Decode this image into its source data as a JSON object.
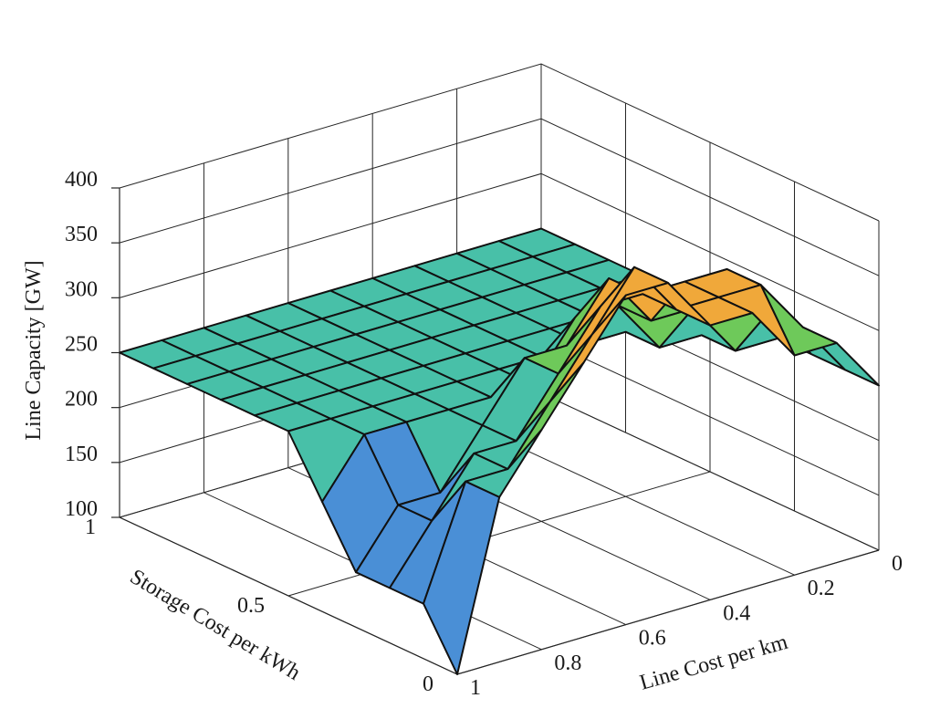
{
  "chart_data": {
    "type": "surface",
    "xlabel": "Line Cost per km",
    "ylabel": "Storage Cost per kWh",
    "zlabel": "Line Capacity [GW]",
    "xlim": [
      0,
      1
    ],
    "ylim": [
      0,
      1
    ],
    "zlim": [
      100,
      400
    ],
    "x_ticks": [
      "0",
      "0.2",
      "0.4",
      "0.6",
      "0.8",
      "1"
    ],
    "y_ticks": [
      "0",
      "0.5",
      "1"
    ],
    "z_ticks": [
      "100",
      "150",
      "200",
      "250",
      "300",
      "350",
      "400"
    ],
    "grid": true,
    "colormap": "parula",
    "x": [
      0,
      0.1,
      0.2,
      0.3,
      0.4,
      0.5,
      0.6,
      0.7,
      0.8,
      0.9,
      1
    ],
    "y": [
      0,
      0.1,
      0.2,
      0.3,
      0.4,
      0.5,
      0.6,
      0.7,
      0.8,
      0.9,
      1
    ],
    "z_rows_note": "rows indexed by y (0..1), columns by x (0..1)",
    "z": [
      [
        250,
        300,
        300,
        350,
        350,
        400,
        400,
        350,
        300,
        250,
        100
      ],
      [
        250,
        300,
        350,
        350,
        350,
        400,
        350,
        300,
        250,
        250,
        150
      ],
      [
        250,
        300,
        350,
        350,
        350,
        350,
        300,
        250,
        250,
        200,
        150
      ],
      [
        250,
        250,
        300,
        300,
        350,
        300,
        300,
        250,
        200,
        200,
        150
      ],
      [
        250,
        250,
        250,
        300,
        300,
        250,
        250,
        250,
        250,
        250,
        200
      ],
      [
        250,
        250,
        250,
        250,
        250,
        250,
        250,
        250,
        250,
        250,
        250
      ],
      [
        250,
        250,
        250,
        250,
        250,
        250,
        250,
        250,
        250,
        250,
        250
      ],
      [
        250,
        250,
        250,
        250,
        250,
        250,
        250,
        250,
        250,
        250,
        250
      ],
      [
        250,
        250,
        250,
        250,
        250,
        250,
        250,
        250,
        250,
        250,
        250
      ],
      [
        250,
        250,
        250,
        250,
        250,
        250,
        250,
        250,
        250,
        250,
        250
      ],
      [
        250,
        250,
        250,
        250,
        250,
        250,
        250,
        250,
        250,
        250,
        250
      ]
    ],
    "colors": {
      "low": "#3f51b5",
      "mid_low": "#4a8fd6",
      "mid": "#48c0a8",
      "mid_high": "#6ec95a",
      "high": "#f0a83a",
      "top": "#dde83a"
    }
  }
}
